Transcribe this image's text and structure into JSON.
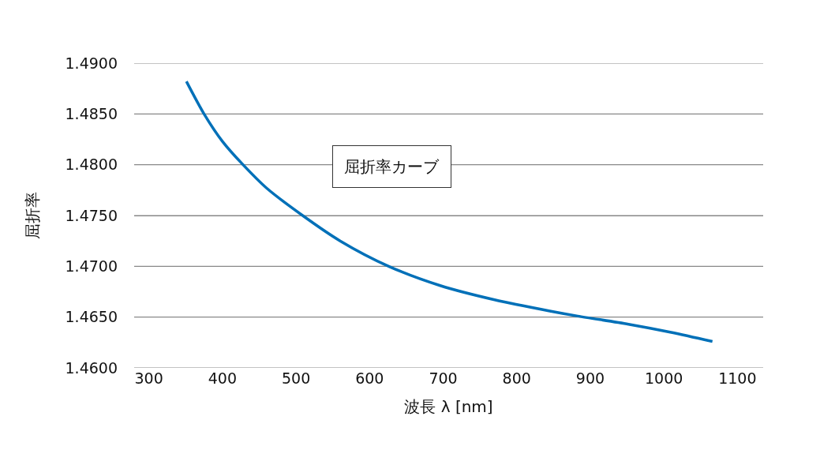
{
  "chart_data": {
    "type": "line",
    "xlabel": "波長 λ [nm]",
    "ylabel": "屈折率",
    "x": [
      351,
      375,
      400,
      428,
      460,
      509,
      560,
      626,
      696,
      770,
      845,
      883,
      952,
      1010,
      1066
    ],
    "series": [
      {
        "color": "#0070b8",
        "values": [
          1.4882,
          1.485,
          1.4823,
          1.48,
          1.4777,
          1.475,
          1.4725,
          1.47,
          1.4681,
          1.4667,
          1.4656,
          1.4651,
          1.4643,
          1.4635,
          1.4626
        ]
      }
    ],
    "xlim": [
      280,
      1135
    ],
    "xticks": [
      300,
      400,
      500,
      600,
      700,
      800,
      900,
      1000,
      1100
    ],
    "ylim": [
      1.46,
      1.49
    ],
    "yticks": [
      {
        "value": 1.46,
        "label": "1.4600"
      },
      {
        "value": 1.465,
        "label": "1.4650"
      },
      {
        "value": 1.47,
        "label": "1.4700"
      },
      {
        "value": 1.475,
        "label": "1.4750"
      },
      {
        "value": 1.48,
        "label": "1.4800"
      },
      {
        "value": 1.485,
        "label": "1.4850"
      },
      {
        "value": 1.49,
        "label": "1.4900"
      }
    ],
    "annotations": [
      "屈折率カーブ"
    ],
    "grid": "y",
    "marker": "none",
    "line_style": "solid"
  }
}
